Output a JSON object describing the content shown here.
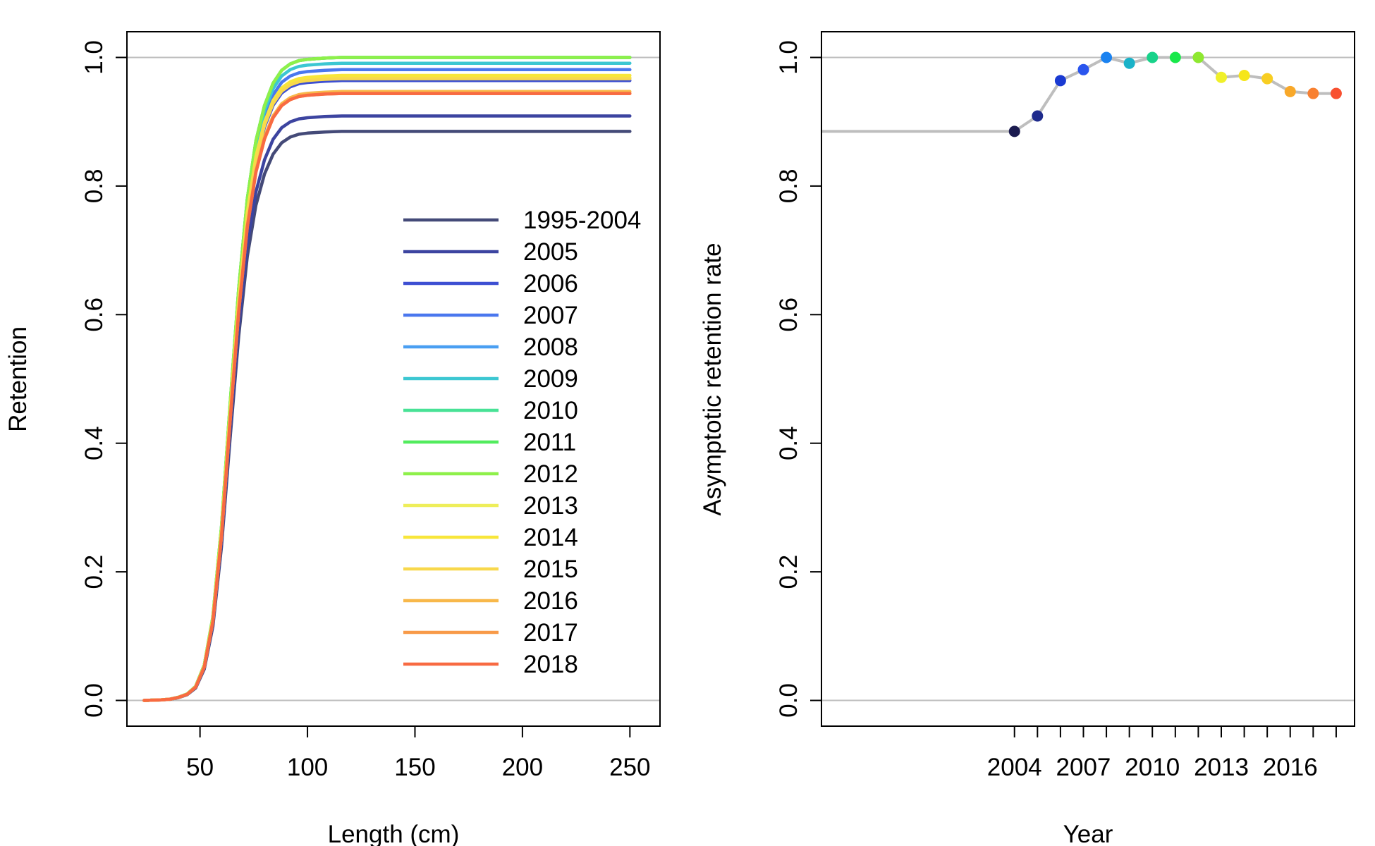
{
  "chart_data": [
    {
      "type": "line",
      "xlabel": "Length (cm)",
      "ylabel": "Retention",
      "xlim": [
        16,
        264
      ],
      "ylim": [
        -0.04,
        1.04
      ],
      "xticks": [
        50,
        100,
        150,
        200,
        250
      ],
      "yticks": [
        0.0,
        0.2,
        0.4,
        0.6,
        0.8,
        1.0
      ],
      "xtick_labels": [
        "50",
        "100",
        "150",
        "200",
        "250"
      ],
      "ytick_labels": [
        "0.0",
        "0.2",
        "0.4",
        "0.6",
        "0.8",
        "1.0"
      ],
      "reference_lines_y": [
        0,
        1
      ],
      "grid": false,
      "legend_position": "right",
      "curve": {
        "x": [
          24,
          28,
          32,
          36,
          40,
          44,
          48,
          52,
          56,
          60,
          64,
          68,
          72,
          76,
          80,
          84,
          88,
          92,
          96,
          100,
          104,
          108,
          112,
          116,
          120,
          250
        ],
        "shape": [
          0.0,
          0.0005,
          0.001,
          0.002,
          0.005,
          0.01,
          0.022,
          0.055,
          0.13,
          0.27,
          0.46,
          0.64,
          0.78,
          0.87,
          0.925,
          0.96,
          0.98,
          0.99,
          0.995,
          0.997,
          0.998,
          0.999,
          0.9995,
          1.0,
          1.0,
          1.0
        ]
      },
      "series": [
        {
          "name": "1995-2004",
          "asymptote": 0.885,
          "color": "#444a78"
        },
        {
          "name": "2005",
          "asymptote": 0.909,
          "color": "#3c44a0"
        },
        {
          "name": "2006",
          "asymptote": 0.964,
          "color": "#3d4fd2"
        },
        {
          "name": "2007",
          "asymptote": 0.981,
          "color": "#4a77ee"
        },
        {
          "name": "2008",
          "asymptote": 1.0,
          "color": "#4a9ff2"
        },
        {
          "name": "2009",
          "asymptote": 0.991,
          "color": "#3cc7d2"
        },
        {
          "name": "2010",
          "asymptote": 1.0,
          "color": "#48e296"
        },
        {
          "name": "2011",
          "asymptote": 1.0,
          "color": "#52ec5e"
        },
        {
          "name": "2012",
          "asymptote": 1.0,
          "color": "#8ef04a"
        },
        {
          "name": "2013",
          "asymptote": 0.969,
          "color": "#eeee5a"
        },
        {
          "name": "2014",
          "asymptote": 0.972,
          "color": "#f8e63a"
        },
        {
          "name": "2015",
          "asymptote": 0.967,
          "color": "#f8d84c"
        },
        {
          "name": "2016",
          "asymptote": 0.947,
          "color": "#f8b84a"
        },
        {
          "name": "2017",
          "asymptote": 0.944,
          "color": "#f89a48"
        },
        {
          "name": "2018",
          "asymptote": 0.944,
          "color": "#f86a42"
        }
      ]
    },
    {
      "type": "line",
      "xlabel": "Year",
      "ylabel": "Asymptotic retention rate",
      "xlim": [
        1995.6,
        2018.8
      ],
      "ylim": [
        -0.04,
        1.04
      ],
      "xticks": [
        2004,
        2005,
        2006,
        2007,
        2008,
        2009,
        2010,
        2011,
        2012,
        2013,
        2014,
        2015,
        2016,
        2017,
        2018
      ],
      "xtick_labels": [
        "2004",
        "",
        "",
        "2007",
        "",
        "",
        "2010",
        "",
        "",
        "2013",
        "",
        "",
        "2016",
        "",
        ""
      ],
      "yticks": [
        0.0,
        0.2,
        0.4,
        0.6,
        0.8,
        1.0
      ],
      "ytick_labels": [
        "0.0",
        "0.2",
        "0.4",
        "0.6",
        "0.8",
        "1.0"
      ],
      "reference_lines_y": [
        0,
        1
      ],
      "grid": false,
      "line_color": "#bebebe",
      "baseline": {
        "x": [
          1995.6,
          2004
        ],
        "y": [
          0.885,
          0.885
        ]
      },
      "x": [
        2004,
        2005,
        2006,
        2007,
        2008,
        2009,
        2010,
        2011,
        2012,
        2013,
        2014,
        2015,
        2016,
        2017,
        2018
      ],
      "y": [
        0.885,
        0.909,
        0.964,
        0.981,
        1.0,
        0.991,
        1.0,
        1.0,
        1.0,
        0.969,
        0.972,
        0.967,
        0.947,
        0.944,
        0.944
      ],
      "point_colors": [
        "#1b1b4f",
        "#1e2a8c",
        "#1a3ad2",
        "#2a55ee",
        "#1a82f0",
        "#1ab2c8",
        "#18d28a",
        "#18e84a",
        "#8ee830",
        "#f0f02a",
        "#f6e61a",
        "#f8ce22",
        "#f8a82a",
        "#f88030",
        "#f85030"
      ]
    }
  ]
}
